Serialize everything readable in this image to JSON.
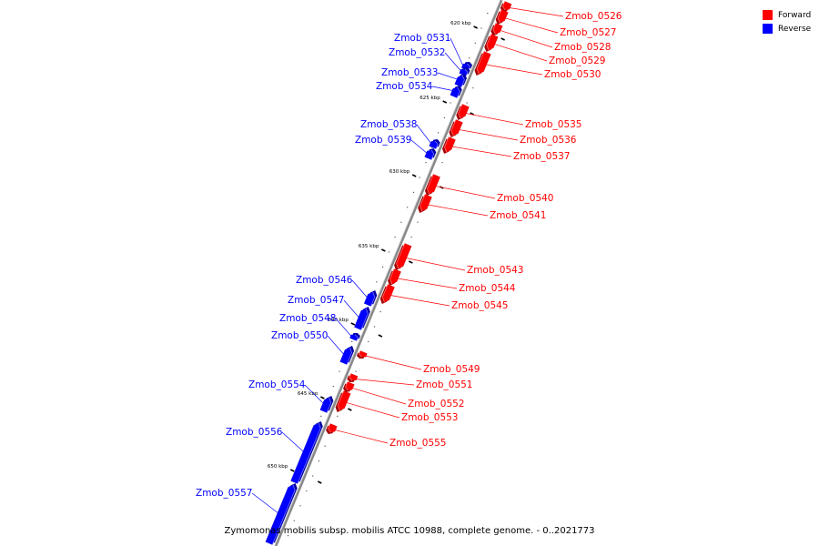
{
  "caption": "Zymomonas mobilis subsp. mobilis ATCC 10988, complete genome. - 0..2021773",
  "legend": [
    {
      "label": "Forward",
      "color": "#ff0000"
    },
    {
      "label": "Reverse",
      "color": "#0000ff"
    }
  ],
  "colors": {
    "forward": "#ff0000",
    "reverse": "#0000ff",
    "backbone": "#888888"
  },
  "ticks": [
    {
      "label": "620 kbp"
    },
    {
      "label": "625 kbp"
    },
    {
      "label": "630 kbp"
    },
    {
      "label": "635 kbp"
    },
    {
      "label": "640 kbp"
    },
    {
      "label": "645 kbp"
    },
    {
      "label": "650 kbp"
    }
  ],
  "genes": [
    {
      "label": "Zmob_0526",
      "strand": "forward"
    },
    {
      "label": "Zmob_0527",
      "strand": "forward"
    },
    {
      "label": "Zmob_0528",
      "strand": "forward"
    },
    {
      "label": "Zmob_0529",
      "strand": "forward"
    },
    {
      "label": "Zmob_0530",
      "strand": "forward"
    },
    {
      "label": "Zmob_0531",
      "strand": "reverse"
    },
    {
      "label": "Zmob_0532",
      "strand": "reverse"
    },
    {
      "label": "Zmob_0533",
      "strand": "reverse"
    },
    {
      "label": "Zmob_0534",
      "strand": "reverse"
    },
    {
      "label": "Zmob_0535",
      "strand": "forward"
    },
    {
      "label": "Zmob_0536",
      "strand": "forward"
    },
    {
      "label": "Zmob_0537",
      "strand": "forward"
    },
    {
      "label": "Zmob_0538",
      "strand": "reverse"
    },
    {
      "label": "Zmob_0539",
      "strand": "reverse"
    },
    {
      "label": "Zmob_0540",
      "strand": "forward"
    },
    {
      "label": "Zmob_0541",
      "strand": "forward"
    },
    {
      "label": "Zmob_0543",
      "strand": "forward"
    },
    {
      "label": "Zmob_0544",
      "strand": "forward"
    },
    {
      "label": "Zmob_0545",
      "strand": "forward"
    },
    {
      "label": "Zmob_0546",
      "strand": "reverse"
    },
    {
      "label": "Zmob_0547",
      "strand": "reverse"
    },
    {
      "label": "Zmob_0548",
      "strand": "reverse"
    },
    {
      "label": "Zmob_0549",
      "strand": "forward"
    },
    {
      "label": "Zmob_0550",
      "strand": "reverse"
    },
    {
      "label": "Zmob_0551",
      "strand": "forward"
    },
    {
      "label": "Zmob_0552",
      "strand": "forward"
    },
    {
      "label": "Zmob_0553",
      "strand": "forward"
    },
    {
      "label": "Zmob_0554",
      "strand": "reverse"
    },
    {
      "label": "Zmob_0555",
      "strand": "forward"
    },
    {
      "label": "Zmob_0556",
      "strand": "reverse"
    },
    {
      "label": "Zmob_0557",
      "strand": "reverse"
    }
  ]
}
